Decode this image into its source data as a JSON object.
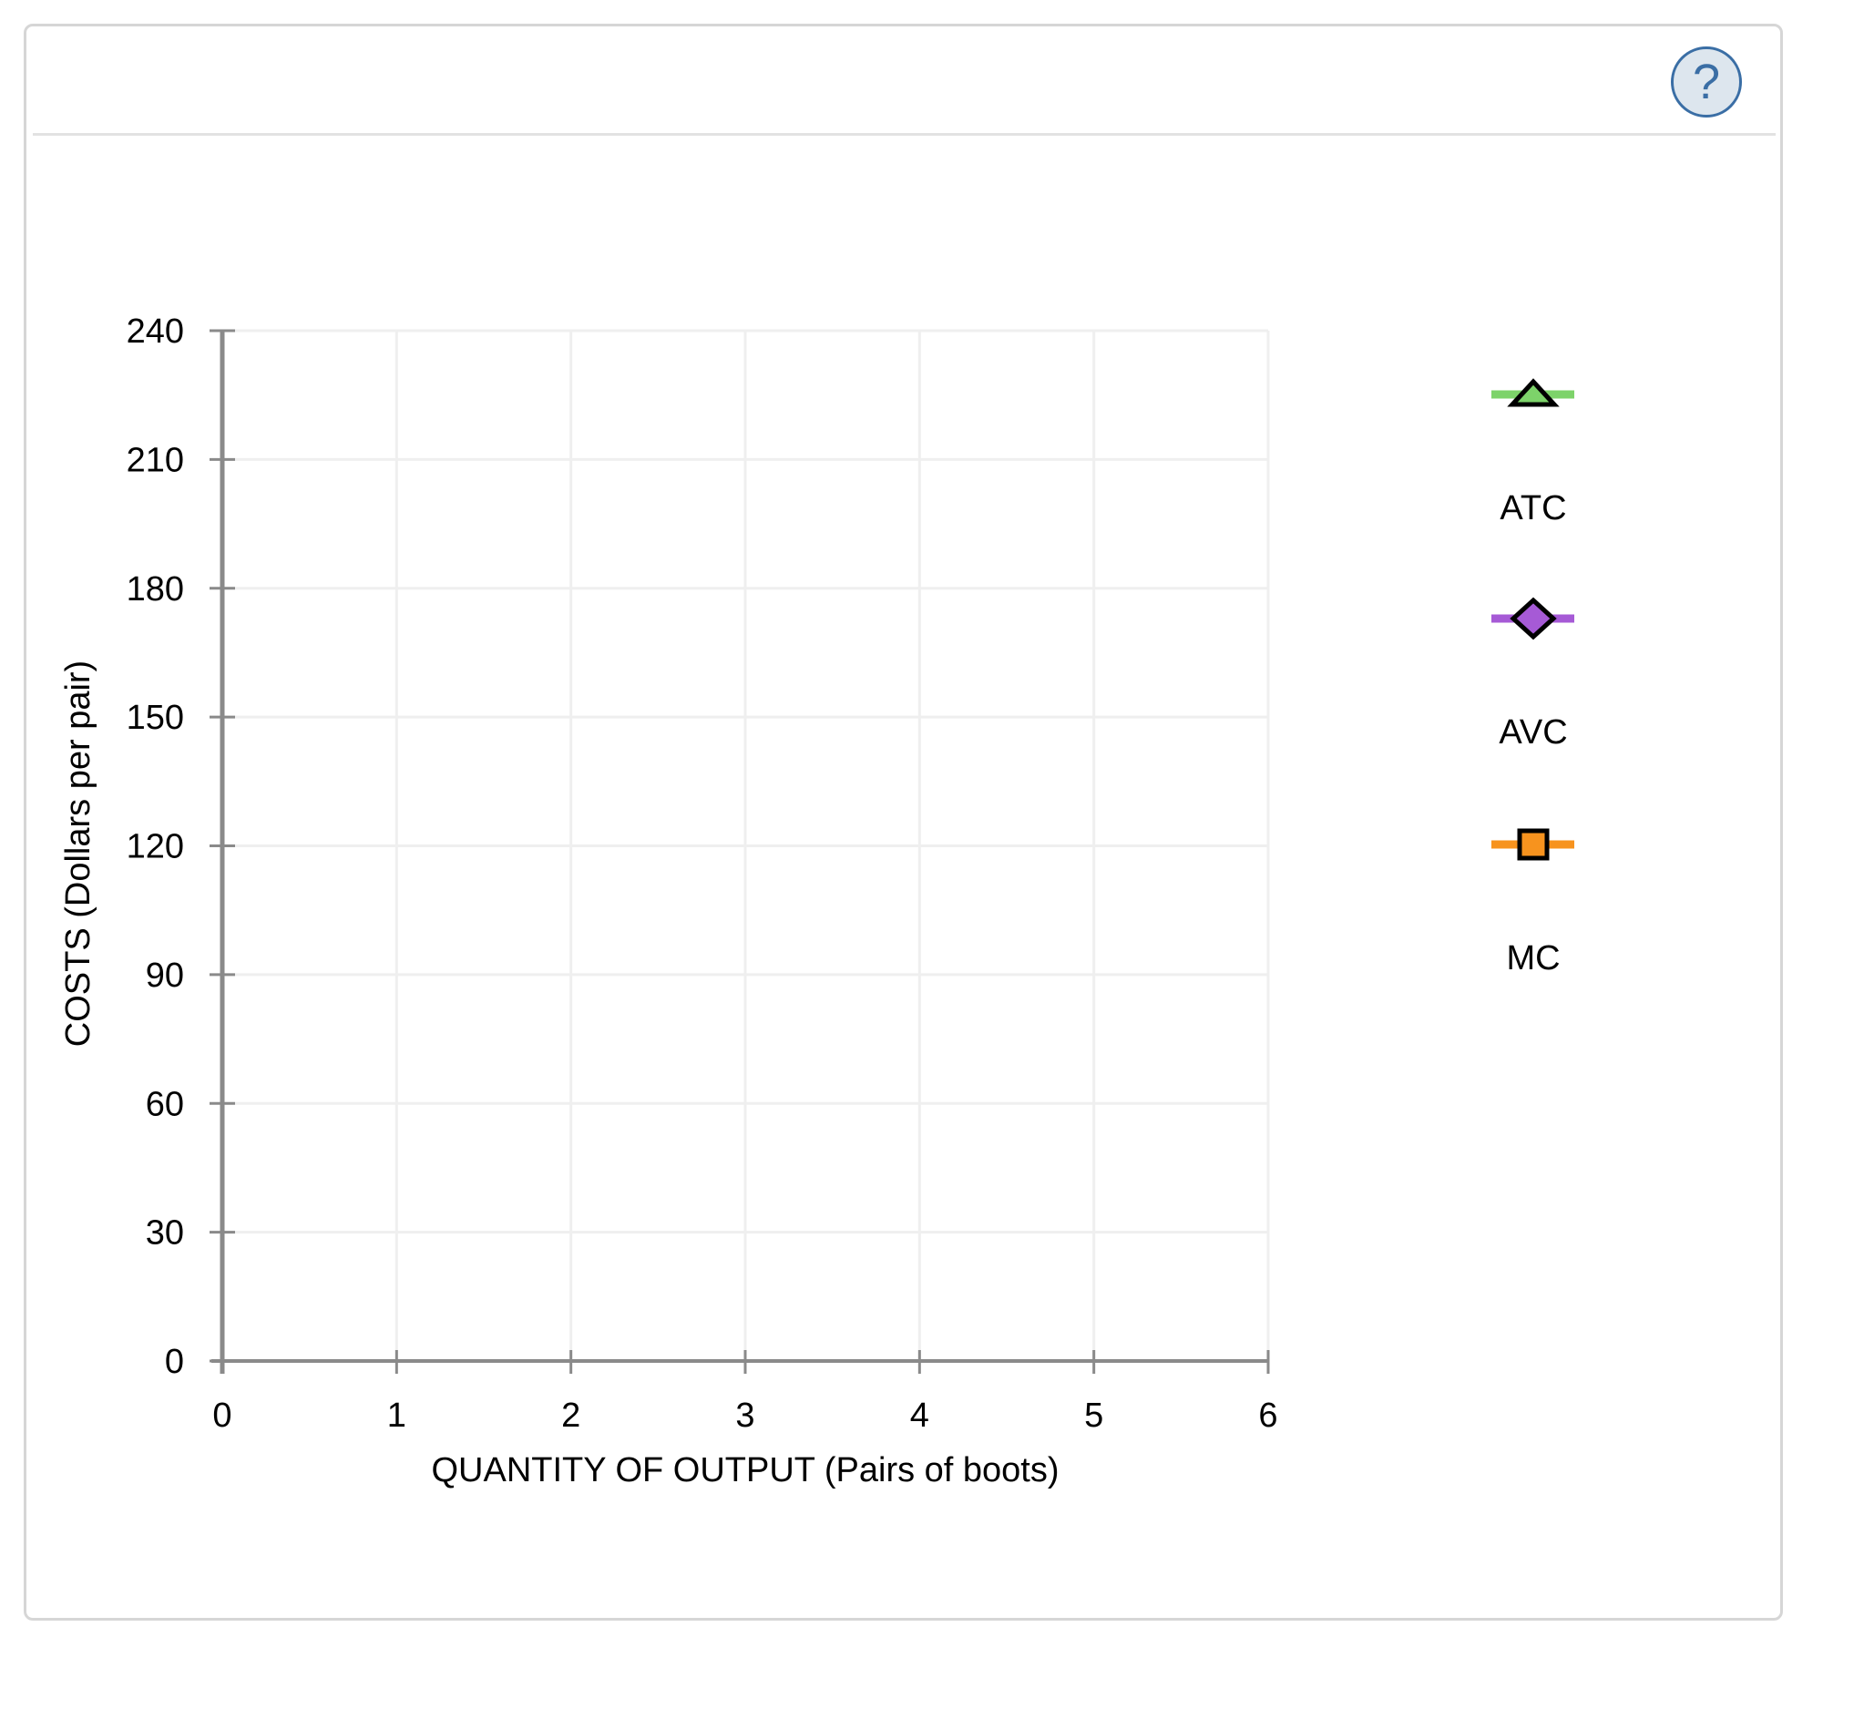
{
  "help_button": {
    "label": "?"
  },
  "chart_data": {
    "type": "line",
    "title": "",
    "xlabel": "QUANTITY OF OUTPUT (Pairs of boots)",
    "ylabel": "COSTS (Dollars per pair)",
    "xlim": [
      0,
      6
    ],
    "ylim": [
      0,
      240
    ],
    "xticks": [
      "0",
      "1",
      "2",
      "3",
      "4",
      "5",
      "6"
    ],
    "yticks": [
      "0",
      "30",
      "60",
      "90",
      "120",
      "150",
      "180",
      "210",
      "240"
    ],
    "grid": true,
    "legend_position": "right",
    "series": [
      {
        "name": "ATC",
        "color": "#7dd36a",
        "marker": "triangle",
        "points": []
      },
      {
        "name": "AVC",
        "color": "#a65ad6",
        "marker": "diamond",
        "points": []
      },
      {
        "name": "MC",
        "color": "#f7931e",
        "marker": "square",
        "points": []
      }
    ]
  }
}
